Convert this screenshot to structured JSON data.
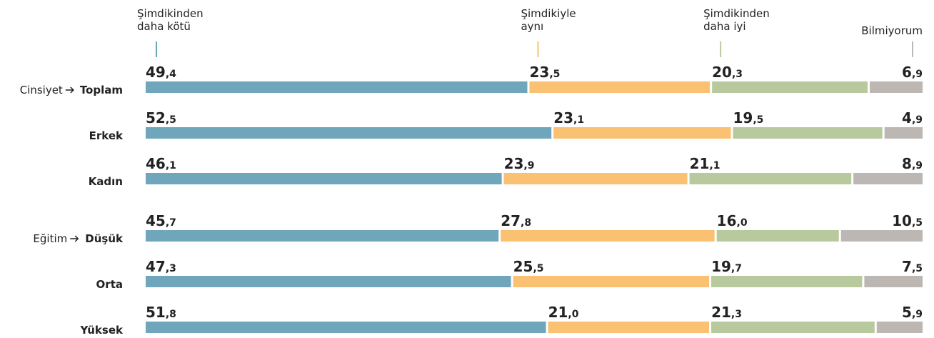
{
  "chart_data": {
    "type": "stacked-bar-horizontal",
    "groups": [
      {
        "name": "Cinsiyet",
        "categories": [
          "Toplam",
          "Erkek",
          "Kadın"
        ]
      },
      {
        "name": "Eğitim",
        "categories": [
          "Düşük",
          "Orta",
          "Yüksek"
        ]
      }
    ],
    "xlim": [
      0,
      100
    ],
    "series": [
      {
        "name": "Şimdikinden daha kötü",
        "color": "#6fa6bc",
        "values": [
          49.4,
          52.5,
          46.1,
          45.7,
          47.3,
          51.8
        ],
        "value_labels": [
          "49,4",
          "52,5",
          "46,1",
          "45,7",
          "47,3",
          "51,8"
        ]
      },
      {
        "name": "Şimdikiyle aynı",
        "color": "#f9c171",
        "values": [
          23.5,
          23.1,
          23.9,
          27.8,
          25.5,
          21.0
        ],
        "value_labels": [
          "23,5",
          "23,1",
          "23,9",
          "27,8",
          "25,5",
          "21,0"
        ]
      },
      {
        "name": "Şimdikinden daha iyi",
        "color": "#b8c99d",
        "values": [
          20.3,
          19.5,
          21.1,
          16.0,
          19.7,
          21.3
        ],
        "value_labels": [
          "20,3",
          "19,5",
          "21,1",
          "16,0",
          "19,7",
          "21,3"
        ]
      },
      {
        "name": "Bilmiyorum",
        "color": "#bdb7b3",
        "values": [
          6.9,
          4.9,
          8.9,
          10.5,
          7.5,
          5.9
        ],
        "value_labels": [
          "6,9",
          "4,9",
          "8,9",
          "10,5",
          "7,5",
          "5,9"
        ]
      }
    ]
  }
}
